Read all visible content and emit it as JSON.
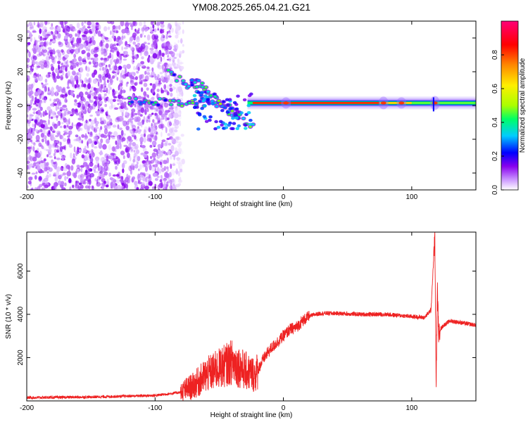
{
  "title": "YM08.2025.265.04.21.G21",
  "chart_data": [
    {
      "type": "heatmap",
      "xlabel": "Height of straight line (km)",
      "ylabel": "Frequency (Hz)",
      "xlim": [
        -200,
        150
      ],
      "ylim": [
        -50,
        50
      ],
      "xticks": [
        -200,
        -100,
        0,
        100
      ],
      "yticks": [
        -40,
        -20,
        0,
        20,
        40
      ],
      "colorbar": {
        "label": "Normalized spectral amplitude",
        "ticks": [
          "0.0",
          "0.2",
          "0.4",
          "0.6",
          "0.8"
        ],
        "range": [
          0,
          1
        ],
        "colors": [
          "#ffffff",
          "#cc99ff",
          "#8800ee",
          "#0000ff",
          "#00ccff",
          "#00ff66",
          "#aaff00",
          "#ffee00",
          "#ff8800",
          "#ff0000",
          "#ff0077"
        ]
      },
      "features": {
        "noise_region_x": [
          -200,
          -78
        ],
        "dominant_line": {
          "x": [
            -28,
            150
          ],
          "frequency": 1.5,
          "strong_x": [
            -28,
            75
          ]
        },
        "chirp_arms": [
          {
            "x": [
              -90,
              -25
            ],
            "y": [
              20,
              -12
            ]
          },
          {
            "x": [
              -72,
              -35
            ],
            "y": [
              16,
              -6
            ]
          },
          {
            "x": [
              -120,
              -60
            ],
            "y": [
              3,
              1
            ]
          }
        ]
      }
    },
    {
      "type": "line",
      "xlabel": "Height of straight line (km)",
      "ylabel": "SNR (10 * v/v)",
      "xlim": [
        -200,
        150
      ],
      "ylim": [
        0,
        7800
      ],
      "xticks": [
        -200,
        -100,
        0,
        100
      ],
      "yticks": [
        2000,
        4000,
        6000
      ],
      "color": "#ee2222",
      "x": [
        -200,
        -150,
        -100,
        -80,
        -70,
        -60,
        -50,
        -40,
        -30,
        -22,
        -15,
        -10,
        -5,
        0,
        5,
        10,
        15,
        20,
        25,
        30,
        40,
        60,
        80,
        100,
        110,
        115,
        118,
        119,
        120,
        121,
        122,
        125,
        130,
        150
      ],
      "y": [
        150,
        180,
        250,
        400,
        700,
        1200,
        1500,
        1800,
        1400,
        1200,
        2000,
        2400,
        2700,
        3000,
        3300,
        3400,
        3700,
        3900,
        4000,
        4050,
        4050,
        4000,
        4000,
        3900,
        3850,
        4200,
        7600,
        700,
        5200,
        3000,
        3300,
        3500,
        3700,
        3500
      ]
    }
  ]
}
